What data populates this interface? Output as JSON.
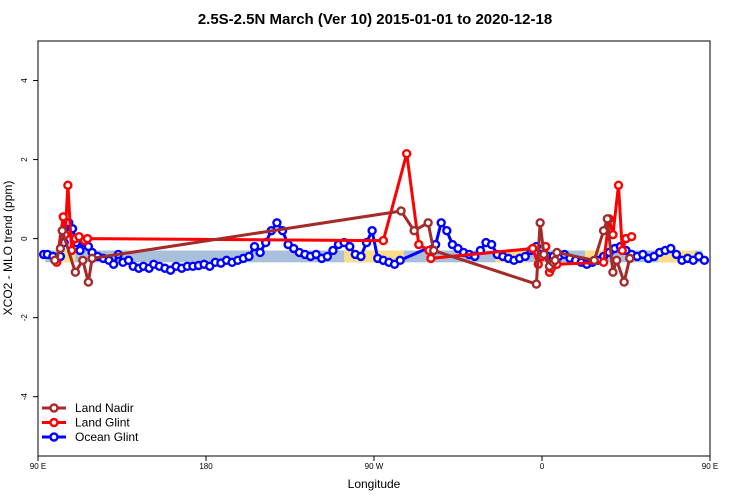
{
  "chart_data": {
    "type": "line",
    "title": "2.5S-2.5N March (Ver 10)   2015-01-01 to 2020-12-18",
    "xlabel": "Longitude",
    "ylabel": "XCO2 - MLO trend (ppm)",
    "xlim": [
      90,
      450
    ],
    "ylim": [
      -5.5,
      5
    ],
    "xticks": [
      90,
      180,
      270,
      360,
      450
    ],
    "xtick_labels": [
      "90 E",
      "180",
      "90 W",
      "0",
      "90 E"
    ],
    "yticks": [
      -4,
      -2,
      0,
      2,
      4
    ],
    "ytick_labels": [
      "-4",
      "-2",
      "0",
      "2",
      "4"
    ],
    "legend_position": "bottom-left",
    "reference_band": {
      "ymin": -0.6,
      "ymax": -0.3,
      "color_ocean": "#a9c0dc",
      "color_land": "#fddd87",
      "land_segments": [
        [
          100,
          110
        ],
        [
          254,
          286
        ],
        [
          335,
          352
        ],
        [
          383,
          393
        ],
        [
          422,
          442
        ]
      ]
    },
    "series": [
      {
        "name": "Land Nadir",
        "color": "#a52a2a",
        "x": [
          99,
          102,
          103,
          110,
          114,
          117,
          119,
          284.5,
          291.5,
          299,
          302,
          357,
          359,
          361,
          364,
          366,
          367,
          368,
          388,
          393,
          395,
          398,
          400,
          404,
          407
        ],
        "y": [
          -0.55,
          -0.25,
          0.2,
          -0.85,
          -0.55,
          -1.1,
          -0.5,
          0.7,
          0.2,
          0.4,
          -0.3,
          -1.15,
          0.4,
          -0.4,
          -0.7,
          -0.6,
          -0.55,
          -0.35,
          -0.55,
          0.2,
          0.5,
          -0.85,
          -0.55,
          -1.1,
          -0.5
        ]
      },
      {
        "name": "Land Glint",
        "color": "#ff0000",
        "x": [
          100,
          103.5,
          104.5,
          106,
          108,
          110,
          112,
          115,
          116.5,
          275,
          287.5,
          294,
          299.5,
          300.5,
          355,
          358,
          360,
          362,
          364,
          365,
          368,
          393,
          396,
          398,
          401,
          403,
          405,
          408
        ],
        "y": [
          -0.6,
          0.55,
          0.1,
          1.35,
          -0.3,
          0,
          0.05,
          -0.05,
          0,
          -0.05,
          2.15,
          -0.15,
          -0.3,
          -0.5,
          -0.25,
          -0.65,
          -0.45,
          -0.2,
          -0.85,
          -0.75,
          -0.65,
          -0.6,
          0.5,
          0.1,
          1.35,
          -0.3,
          0,
          0.05
        ]
      },
      {
        "name": "Ocean Glint",
        "color": "#0000ff",
        "x": [
          93,
          95,
          98,
          100,
          102,
          104,
          106.5,
          108.5,
          110.5,
          112.5,
          114.5,
          117,
          119,
          122,
          125,
          128,
          130.5,
          133,
          135.5,
          138.5,
          141,
          144,
          146.5,
          149.5,
          152,
          155,
          158,
          161,
          164,
          167,
          170,
          173,
          176,
          179,
          182,
          185,
          188,
          191,
          194,
          197,
          200,
          203,
          206,
          209,
          212,
          215,
          218,
          221,
          224,
          227,
          230,
          233,
          236,
          239,
          242,
          245,
          248,
          251,
          254,
          257,
          260,
          263,
          266,
          269,
          272,
          275,
          278,
          281,
          284,
          303,
          306,
          309,
          312,
          315,
          318,
          321,
          324,
          327,
          330,
          333,
          336,
          339,
          342,
          345,
          348,
          351,
          354,
          357,
          360,
          363,
          366,
          369,
          372,
          375,
          378,
          381,
          384,
          387,
          390,
          393,
          396,
          399,
          402,
          405,
          408,
          411,
          414,
          417,
          420,
          423,
          426,
          429,
          432,
          435,
          438,
          441,
          444,
          447
        ],
        "y": [
          -0.4,
          -0.4,
          -0.45,
          -0.55,
          -0.45,
          -0.1,
          0.4,
          0.25,
          -0.1,
          -0.3,
          -0.1,
          -0.2,
          -0.35,
          -0.45,
          -0.5,
          -0.55,
          -0.65,
          -0.4,
          -0.6,
          -0.55,
          -0.7,
          -0.75,
          -0.7,
          -0.75,
          -0.65,
          -0.7,
          -0.75,
          -0.8,
          -0.7,
          -0.75,
          -0.7,
          -0.7,
          -0.68,
          -0.65,
          -0.7,
          -0.6,
          -0.62,
          -0.55,
          -0.6,
          -0.55,
          -0.5,
          -0.45,
          -0.2,
          -0.35,
          -0.1,
          0.2,
          0.4,
          0.2,
          -0.15,
          -0.25,
          -0.35,
          -0.4,
          -0.45,
          -0.4,
          -0.5,
          -0.45,
          -0.3,
          -0.15,
          -0.1,
          -0.2,
          -0.4,
          -0.45,
          -0.1,
          0.2,
          -0.5,
          -0.55,
          -0.6,
          -0.65,
          -0.55,
          -0.15,
          0.4,
          0.2,
          -0.15,
          -0.25,
          -0.35,
          -0.4,
          -0.45,
          -0.3,
          -0.1,
          -0.15,
          -0.4,
          -0.45,
          -0.5,
          -0.55,
          -0.5,
          -0.45,
          -0.3,
          -0.2,
          -0.4,
          -0.45,
          -0.45,
          -0.45,
          -0.4,
          -0.5,
          -0.55,
          -0.6,
          -0.65,
          -0.6,
          -0.55,
          -0.45,
          -0.35,
          -0.25,
          -0.2,
          -0.3,
          -0.4,
          -0.45,
          -0.4,
          -0.5,
          -0.45,
          -0.35,
          -0.3,
          -0.25,
          -0.4,
          -0.55,
          -0.5,
          -0.55,
          -0.45,
          -0.55
        ]
      }
    ]
  }
}
